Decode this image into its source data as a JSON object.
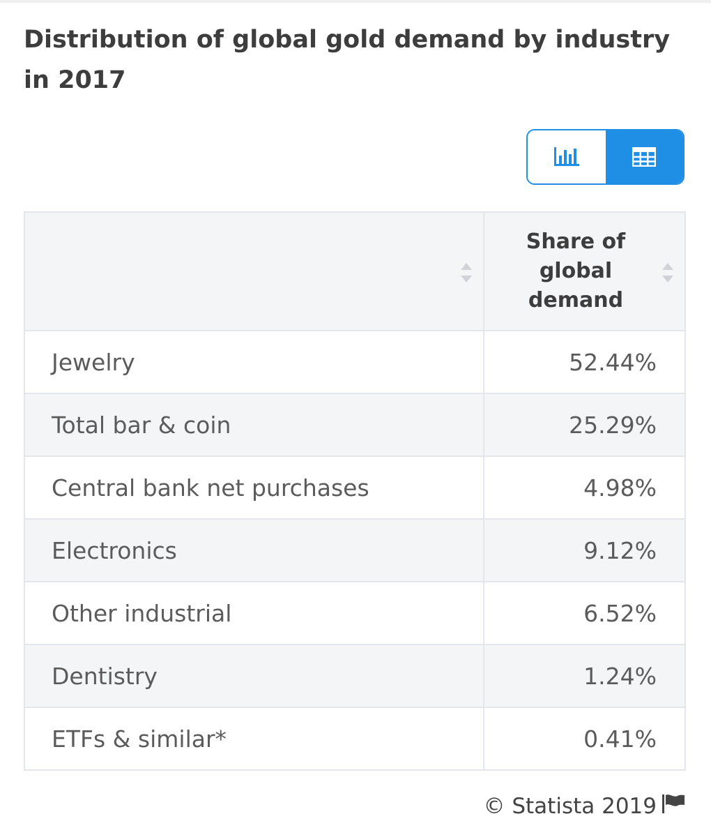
{
  "title": "Distribution of global gold demand by industry in 2017",
  "view_toggle": {
    "chart_icon": "bar-chart-icon",
    "table_icon": "table-grid-icon",
    "active": "table",
    "accent_color": "#1f8fe5"
  },
  "table": {
    "headers": [
      "",
      "Share of global demand"
    ]
  },
  "chart_data": {
    "type": "table",
    "title": "Distribution of global gold demand by industry in 2017",
    "columns": [
      "",
      "Share of global demand"
    ],
    "categories": [
      "Jewelry",
      "Total bar & coin",
      "Central bank net purchases",
      "Electronics",
      "Other industrial",
      "Dentistry",
      "ETFs & similar*"
    ],
    "values": [
      52.44,
      25.29,
      4.98,
      9.12,
      6.52,
      1.24,
      0.41
    ],
    "value_labels": [
      "52.44%",
      "25.29%",
      "4.98%",
      "9.12%",
      "6.52%",
      "1.24%",
      "0.41%"
    ],
    "unit": "%"
  },
  "footer": {
    "copyright": "© Statista 2019",
    "flag_icon": "flag-icon"
  }
}
